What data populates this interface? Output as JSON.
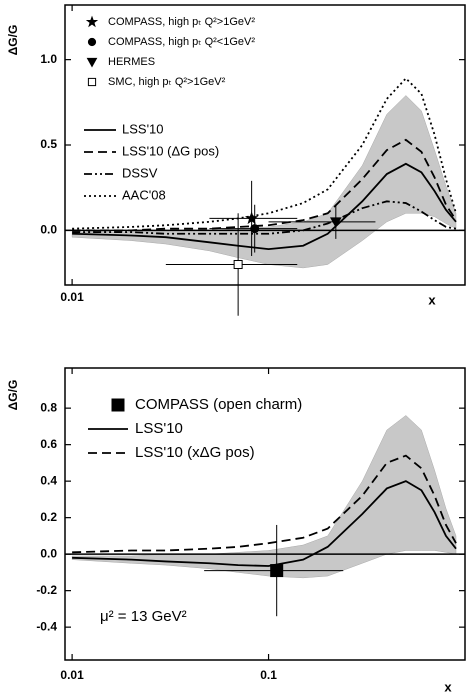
{
  "chart_data": [
    {
      "type": "line",
      "ylabel": "ΔG/G",
      "xlabel": "x",
      "log_x": true,
      "xlim": [
        0.0092,
        1.0
      ],
      "ylim": [
        -0.32,
        1.32
      ],
      "xticks": [
        0.01
      ],
      "yticks": [
        {
          "value": 0,
          "label": "0.0"
        },
        {
          "value": 0.5,
          "label": "0.5"
        },
        {
          "value": 1,
          "label": "1.0"
        }
      ],
      "x": [
        0.01,
        0.02,
        0.03,
        0.05,
        0.07,
        0.1,
        0.15,
        0.2,
        0.3,
        0.4,
        0.5,
        0.6,
        0.7,
        0.8,
        0.9
      ],
      "band": {
        "color": "#c8c8c8",
        "upper": [
          -0.01,
          -0.01,
          0,
          0,
          0.01,
          0.02,
          0.05,
          0.1,
          0.38,
          0.68,
          0.79,
          0.7,
          0.47,
          0.26,
          0.1
        ],
        "lower": [
          -0.04,
          -0.06,
          -0.08,
          -0.12,
          -0.16,
          -0.2,
          -0.22,
          -0.2,
          -0.06,
          0.05,
          0.1,
          0.1,
          0.08,
          0.04,
          0.01
        ]
      },
      "series": [
        {
          "name": "LSS'10",
          "color": "#000000",
          "dash": "solid",
          "values": [
            -0.02,
            -0.03,
            -0.04,
            -0.07,
            -0.09,
            -0.11,
            -0.09,
            -0.02,
            0.17,
            0.33,
            0.39,
            0.34,
            0.23,
            0.12,
            0.05
          ]
        },
        {
          "name": "LSS'10 (ΔG pos)",
          "color": "#000000",
          "dash": "dashed",
          "values": [
            0,
            0,
            0.01,
            0.01,
            0.02,
            0.03,
            0.06,
            0.1,
            0.3,
            0.47,
            0.53,
            0.46,
            0.31,
            0.15,
            0.06
          ]
        },
        {
          "name": "DSSV",
          "color": "#000000",
          "dash": "dashdot",
          "values": [
            -0.01,
            -0.01,
            -0.02,
            -0.02,
            -0.02,
            -0.02,
            0,
            0.04,
            0.13,
            0.17,
            0.16,
            0.11,
            0.06,
            0.02,
            0.01
          ]
        },
        {
          "name": "AAC'08",
          "color": "#000000",
          "dash": "dotted",
          "values": [
            0.01,
            0.02,
            0.03,
            0.05,
            0.07,
            0.1,
            0.16,
            0.24,
            0.5,
            0.77,
            0.89,
            0.8,
            0.56,
            0.3,
            0.1
          ]
        }
      ],
      "points": [
        {
          "name": "COMPASS, high pₜ Q²>1GeV²",
          "marker": "star",
          "x": [
            0.082
          ],
          "y": [
            0.07
          ],
          "yerr": [
            0.22
          ],
          "x_low": [
            0.05
          ],
          "x_high": [
            0.14
          ]
        },
        {
          "name": "COMPASS, high pₜ Q²<1GeV²",
          "marker": "circle",
          "x": [
            0.085
          ],
          "y": [
            0.01
          ],
          "yerr": [
            0.14
          ],
          "x_low": [
            0.05
          ],
          "x_high": [
            0.14
          ]
        },
        {
          "name": "HERMES",
          "marker": "triangle-down",
          "x": [
            0.22
          ],
          "y": [
            0.05
          ],
          "yerr": [
            0.1
          ],
          "x_low": [
            0.1
          ],
          "x_high": [
            0.35
          ]
        },
        {
          "name": "SMC, high pₜ Q²>1GeV²",
          "marker": "square-open",
          "x": [
            0.07
          ],
          "y": [
            -0.2
          ],
          "yerr": [
            0.3
          ],
          "x_low": [
            0.03
          ],
          "x_high": [
            0.14
          ]
        }
      ]
    },
    {
      "type": "line",
      "ylabel": "ΔG/G",
      "xlabel": "x",
      "log_x": true,
      "xlim": [
        0.0092,
        1.0
      ],
      "ylim": [
        -0.58,
        1.02
      ],
      "xticks": [
        0.01,
        0.1
      ],
      "yticks": [
        {
          "value": -0.4,
          "label": "-0.4"
        },
        {
          "value": -0.2,
          "label": "-0.2"
        },
        {
          "value": 0,
          "label": "0.0"
        },
        {
          "value": 0.2,
          "label": "0.2"
        },
        {
          "value": 0.4,
          "label": "0.4"
        },
        {
          "value": 0.6,
          "label": "0.6"
        },
        {
          "value": 0.8,
          "label": "0.8"
        }
      ],
      "annotation": "μ² = 13 GeV²",
      "x": [
        0.01,
        0.02,
        0.03,
        0.05,
        0.07,
        0.1,
        0.15,
        0.2,
        0.3,
        0.4,
        0.5,
        0.6,
        0.7,
        0.8,
        0.9
      ],
      "band": {
        "color": "#c8c8c8",
        "upper": [
          -0.01,
          -0.01,
          0,
          0,
          0.01,
          0.02,
          0.05,
          0.1,
          0.4,
          0.68,
          0.76,
          0.68,
          0.46,
          0.25,
          0.1
        ],
        "lower": [
          -0.03,
          -0.05,
          -0.06,
          -0.08,
          -0.1,
          -0.12,
          -0.13,
          -0.12,
          -0.05,
          0,
          0.02,
          0.02,
          0.02,
          0.01,
          0
        ]
      },
      "points": [
        {
          "name": "COMPASS (open charm)",
          "marker": "square",
          "x": [
            0.11
          ],
          "y": [
            -0.09
          ],
          "yerr": [
            0.25
          ],
          "x_low": [
            0.047
          ],
          "x_high": [
            0.24
          ]
        }
      ],
      "series": [
        {
          "name": "LSS'10",
          "color": "#000000",
          "dash": "solid",
          "values": [
            -0.02,
            -0.03,
            -0.04,
            -0.05,
            -0.06,
            -0.065,
            -0.03,
            0.04,
            0.22,
            0.36,
            0.4,
            0.35,
            0.23,
            0.1,
            0.03
          ]
        },
        {
          "name": "LSS'10 (xΔG pos)",
          "color": "#000000",
          "dash": "dashed",
          "values": [
            0.01,
            0.02,
            0.02,
            0.03,
            0.04,
            0.06,
            0.09,
            0.14,
            0.32,
            0.5,
            0.54,
            0.47,
            0.32,
            0.16,
            0.06
          ]
        }
      ]
    }
  ]
}
